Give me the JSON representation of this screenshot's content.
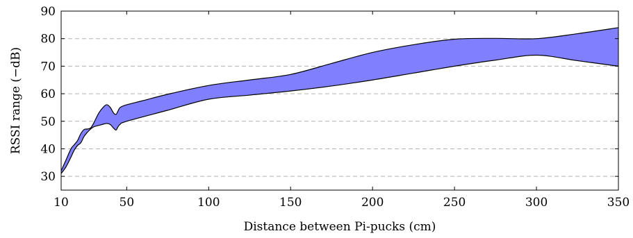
{
  "chart_data": {
    "type": "area",
    "xlabel": "Distance between Pi-pucks (cm)",
    "ylabel": "RSSI range (−dB)",
    "xlim": [
      10,
      350
    ],
    "ylim": [
      25,
      90
    ],
    "xticks": [
      10,
      50,
      100,
      150,
      200,
      250,
      300,
      350
    ],
    "yticks": [
      30,
      40,
      50,
      60,
      70,
      80,
      90
    ],
    "grid": "horizontal dashed",
    "fill_color": "#8080ff",
    "series": [
      {
        "upper": [
          [
            10,
            32
          ],
          [
            13,
            36
          ],
          [
            16,
            40
          ],
          [
            18,
            41.5
          ],
          [
            20,
            43
          ],
          [
            22,
            45.5
          ],
          [
            24,
            47
          ],
          [
            26,
            47.2
          ],
          [
            28,
            47.6
          ],
          [
            30,
            49.5
          ],
          [
            33,
            53
          ],
          [
            36,
            55.3
          ],
          [
            38,
            56
          ],
          [
            40,
            55
          ],
          [
            42,
            53
          ],
          [
            43.5,
            52.5
          ],
          [
            44.5,
            53.5
          ],
          [
            46,
            55
          ],
          [
            50,
            56
          ],
          [
            60,
            57.5
          ],
          [
            75,
            59.8
          ],
          [
            100,
            63
          ],
          [
            125,
            65
          ],
          [
            150,
            67
          ],
          [
            175,
            71
          ],
          [
            200,
            75
          ],
          [
            225,
            77.8
          ],
          [
            250,
            79.8
          ],
          [
            275,
            80.1
          ],
          [
            300,
            80
          ],
          [
            325,
            81.8
          ],
          [
            350,
            84
          ]
        ],
        "lower": [
          [
            10,
            31
          ],
          [
            13,
            33.5
          ],
          [
            16,
            37
          ],
          [
            18,
            39.5
          ],
          [
            20,
            41.2
          ],
          [
            22,
            42.2
          ],
          [
            24,
            44.5
          ],
          [
            26,
            46
          ],
          [
            28,
            47.2
          ],
          [
            30,
            48
          ],
          [
            33,
            48.5
          ],
          [
            36,
            49
          ],
          [
            38,
            49.2
          ],
          [
            40,
            48.8
          ],
          [
            42,
            47.5
          ],
          [
            43.5,
            46.8
          ],
          [
            44.5,
            47.8
          ],
          [
            46,
            48.9
          ],
          [
            50,
            50
          ],
          [
            75,
            54
          ],
          [
            100,
            58
          ],
          [
            125,
            59.5
          ],
          [
            150,
            61
          ],
          [
            175,
            62.8
          ],
          [
            200,
            65
          ],
          [
            225,
            67.5
          ],
          [
            250,
            70
          ],
          [
            275,
            72.2
          ],
          [
            300,
            74
          ],
          [
            325,
            72
          ],
          [
            350,
            70
          ]
        ]
      }
    ]
  }
}
